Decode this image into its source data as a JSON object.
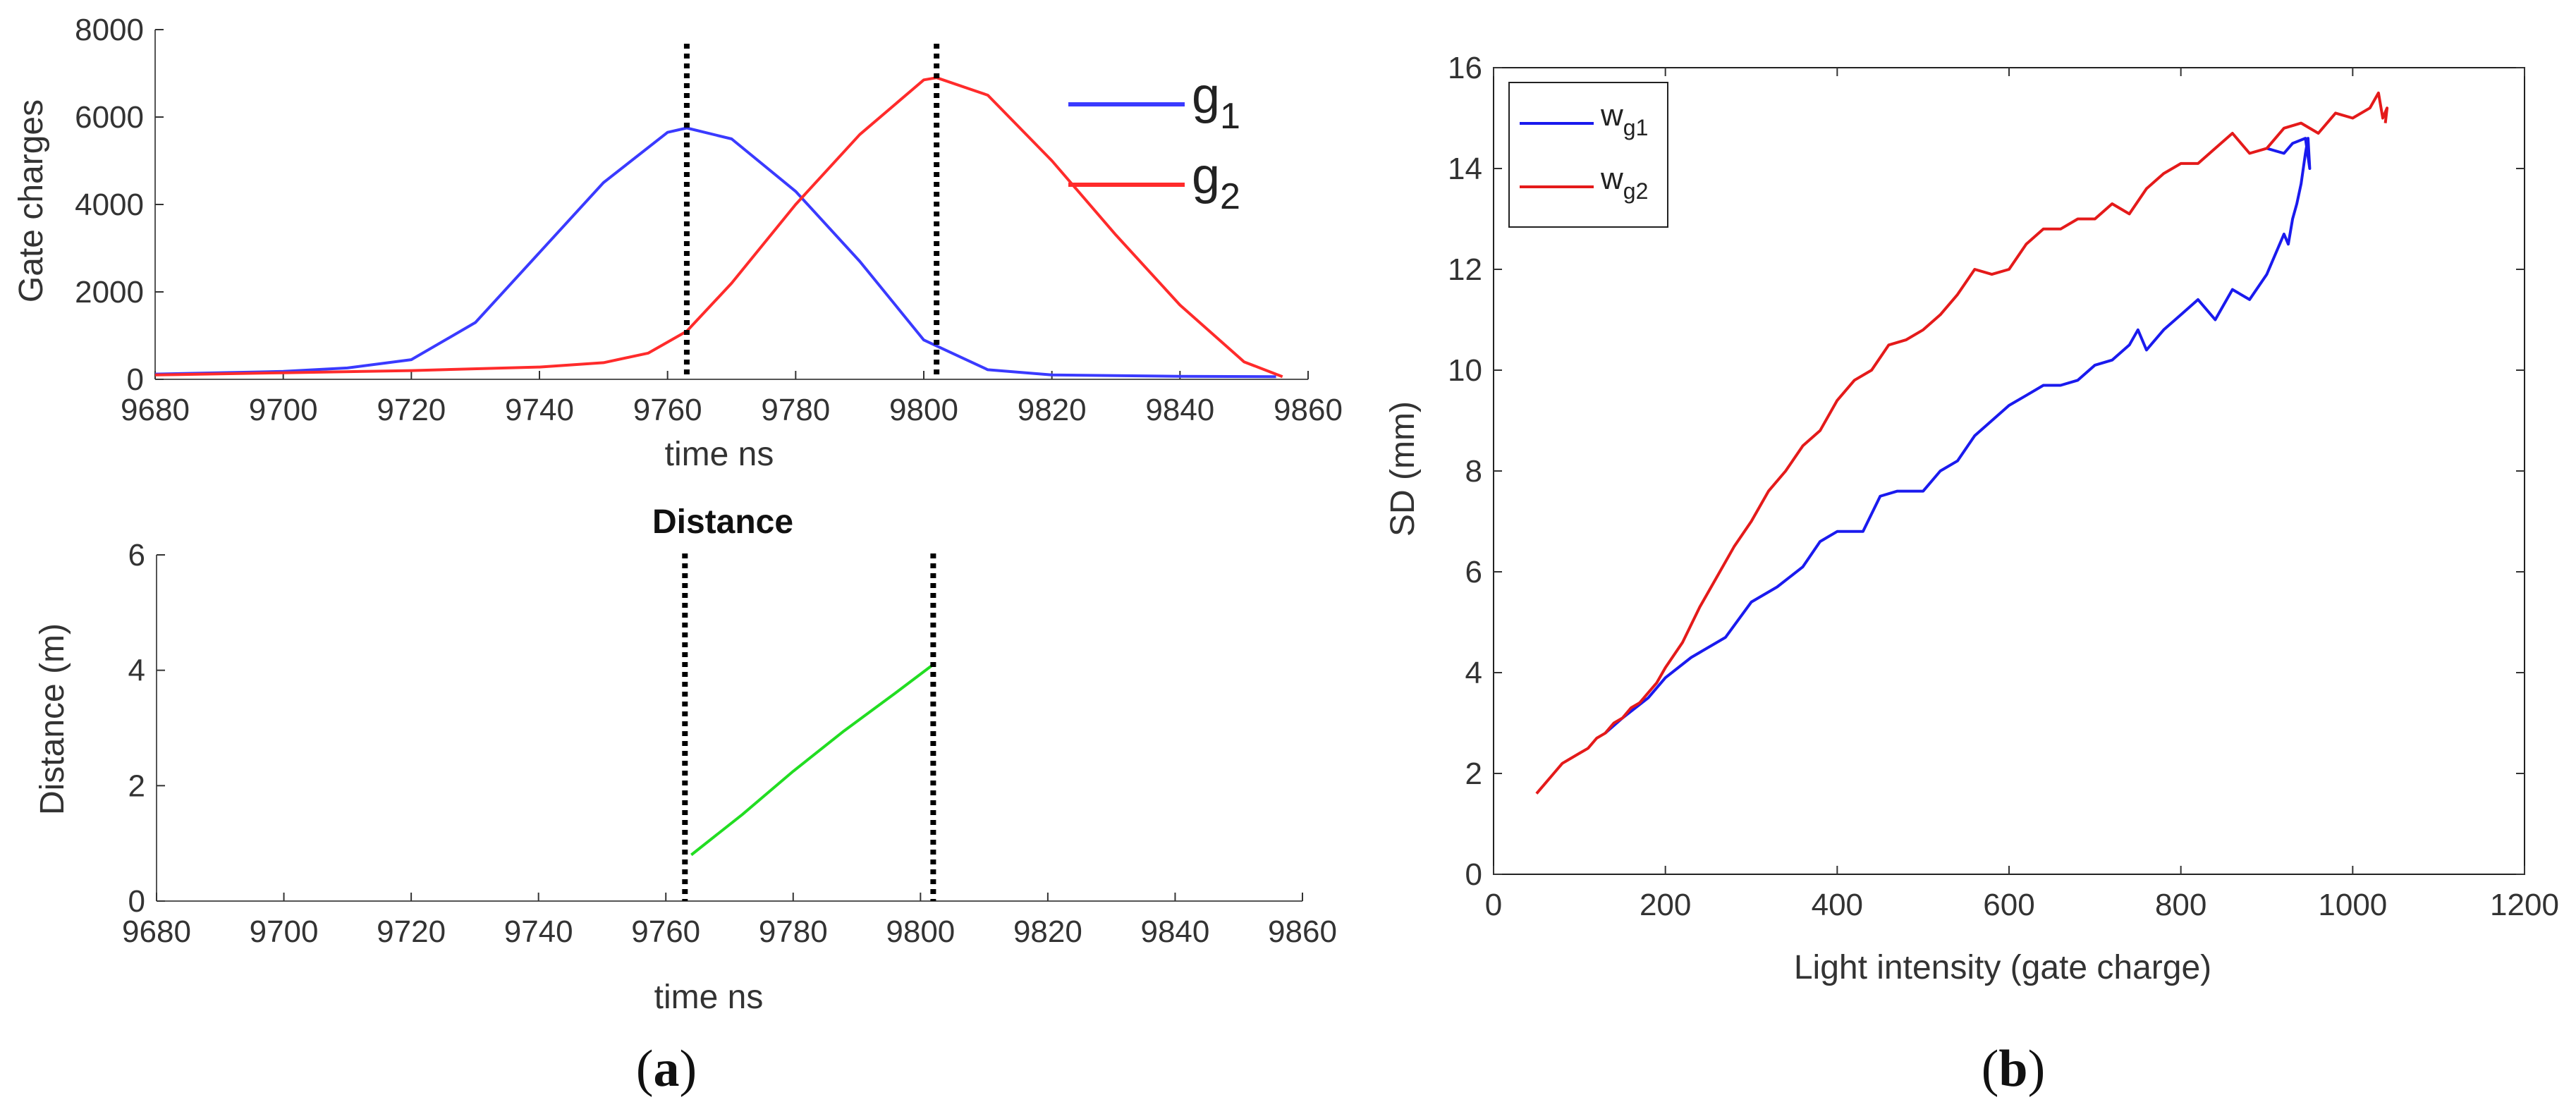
{
  "chart_data": [
    {
      "id": "a_top",
      "type": "line",
      "title": "",
      "xlabel": "time ns",
      "ylabel": "Gate charges",
      "xlim": [
        9680,
        9860
      ],
      "ylim": [
        0,
        8000
      ],
      "xticks": [
        "9680",
        "9700",
        "9720",
        "9740",
        "9760",
        "9780",
        "9800",
        "9820",
        "9840",
        "9860"
      ],
      "yticks": [
        "0",
        "2000",
        "4000",
        "6000",
        "8000"
      ],
      "series": [
        {
          "name": "g1",
          "legend_main": "g",
          "legend_sub": "1",
          "color": "#3a3aff",
          "x": [
            9680,
            9700,
            9710,
            9720,
            9730,
            9740,
            9750,
            9760,
            9763,
            9770,
            9780,
            9790,
            9800,
            9810,
            9820,
            9840,
            9855
          ],
          "y": [
            120,
            180,
            260,
            450,
            1300,
            2900,
            4500,
            5650,
            5750,
            5500,
            4300,
            2700,
            900,
            220,
            100,
            70,
            60
          ]
        },
        {
          "name": "g2",
          "legend_main": "g",
          "legend_sub": "2",
          "color": "#ff2b2b",
          "x": [
            9680,
            9700,
            9720,
            9740,
            9750,
            9757,
            9763,
            9770,
            9780,
            9790,
            9800,
            9802,
            9810,
            9820,
            9830,
            9840,
            9850,
            9856
          ],
          "y": [
            100,
            150,
            200,
            280,
            380,
            600,
            1100,
            2200,
            4000,
            5600,
            6850,
            6900,
            6500,
            5000,
            3300,
            1700,
            400,
            60
          ]
        }
      ],
      "vlines": [
        9763,
        9802
      ]
    },
    {
      "id": "a_bottom",
      "type": "line",
      "title": "Distance",
      "xlabel": "time ns",
      "ylabel": "Distance (m)",
      "xlim": [
        9680,
        9860
      ],
      "ylim": [
        0,
        6
      ],
      "xticks": [
        "9680",
        "9700",
        "9720",
        "9740",
        "9760",
        "9780",
        "9800",
        "9820",
        "9840",
        "9860"
      ],
      "yticks": [
        "0",
        "2",
        "4",
        "6"
      ],
      "series": [
        {
          "name": "distance",
          "color": "#22dd22",
          "x": [
            9764,
            9772,
            9780,
            9788,
            9796,
            9802
          ],
          "y": [
            0.8,
            1.5,
            2.25,
            2.95,
            3.6,
            4.1
          ]
        }
      ],
      "vlines": [
        9763,
        9802
      ]
    },
    {
      "id": "b",
      "type": "line",
      "title": "",
      "xlabel": "Light intensity (gate charge)",
      "ylabel": "SD (mm)",
      "xlim": [
        0,
        1200
      ],
      "ylim": [
        0,
        16
      ],
      "xticks": [
        "0",
        "200",
        "400",
        "600",
        "800",
        "1000",
        "1200"
      ],
      "yticks": [
        "0",
        "2",
        "4",
        "6",
        "8",
        "10",
        "12",
        "14",
        "16"
      ],
      "series": [
        {
          "name": "w_g1",
          "legend_main": "w",
          "legend_sub": "g1",
          "color": "#1a1aee",
          "x": [
            130,
            150,
            180,
            200,
            230,
            270,
            300,
            330,
            360,
            380,
            400,
            430,
            450,
            470,
            500,
            520,
            540,
            560,
            600,
            620,
            640,
            660,
            680,
            700,
            720,
            740,
            750,
            760,
            780,
            800,
            820,
            840,
            860,
            880,
            900,
            910,
            920,
            925,
            930,
            935,
            940,
            945,
            948,
            950,
            945,
            930,
            920,
            900
          ],
          "y": [
            2.8,
            3.1,
            3.5,
            3.9,
            4.3,
            4.7,
            5.4,
            5.7,
            6.1,
            6.6,
            6.8,
            6.8,
            7.5,
            7.6,
            7.6,
            8.0,
            8.2,
            8.7,
            9.3,
            9.5,
            9.7,
            9.7,
            9.8,
            10.1,
            10.2,
            10.5,
            10.8,
            10.4,
            10.8,
            11.1,
            11.4,
            11.0,
            11.6,
            11.4,
            11.9,
            12.3,
            12.7,
            12.5,
            13.0,
            13.3,
            13.7,
            14.3,
            14.6,
            14.0,
            14.6,
            14.5,
            14.3,
            14.4
          ]
        },
        {
          "name": "w_g2",
          "legend_main": "w",
          "legend_sub": "g2",
          "color": "#e41a1a",
          "x": [
            50,
            60,
            70,
            80,
            90,
            100,
            110,
            120,
            130,
            140,
            150,
            160,
            170,
            180,
            190,
            200,
            220,
            240,
            260,
            280,
            300,
            320,
            340,
            360,
            380,
            400,
            420,
            440,
            460,
            480,
            500,
            520,
            540,
            560,
            580,
            600,
            620,
            640,
            660,
            680,
            700,
            720,
            740,
            760,
            780,
            800,
            820,
            840,
            860,
            880,
            900,
            920,
            940,
            960,
            980,
            1000,
            1020,
            1030,
            1035,
            1040,
            1038
          ],
          "y": [
            1.6,
            1.8,
            2.0,
            2.2,
            2.3,
            2.4,
            2.5,
            2.7,
            2.8,
            3.0,
            3.1,
            3.3,
            3.4,
            3.6,
            3.8,
            4.1,
            4.6,
            5.3,
            5.9,
            6.5,
            7.0,
            7.6,
            8.0,
            8.5,
            8.8,
            9.4,
            9.8,
            10.0,
            10.5,
            10.6,
            10.8,
            11.1,
            11.5,
            12.0,
            11.9,
            12.0,
            12.5,
            12.8,
            12.8,
            13.0,
            13.0,
            13.3,
            13.1,
            13.6,
            13.9,
            14.1,
            14.1,
            14.4,
            14.7,
            14.3,
            14.4,
            14.8,
            14.9,
            14.7,
            15.1,
            15.0,
            15.2,
            15.5,
            15.0,
            15.2,
            14.9
          ]
        }
      ]
    }
  ],
  "captions": {
    "a": "a",
    "b": "b"
  }
}
